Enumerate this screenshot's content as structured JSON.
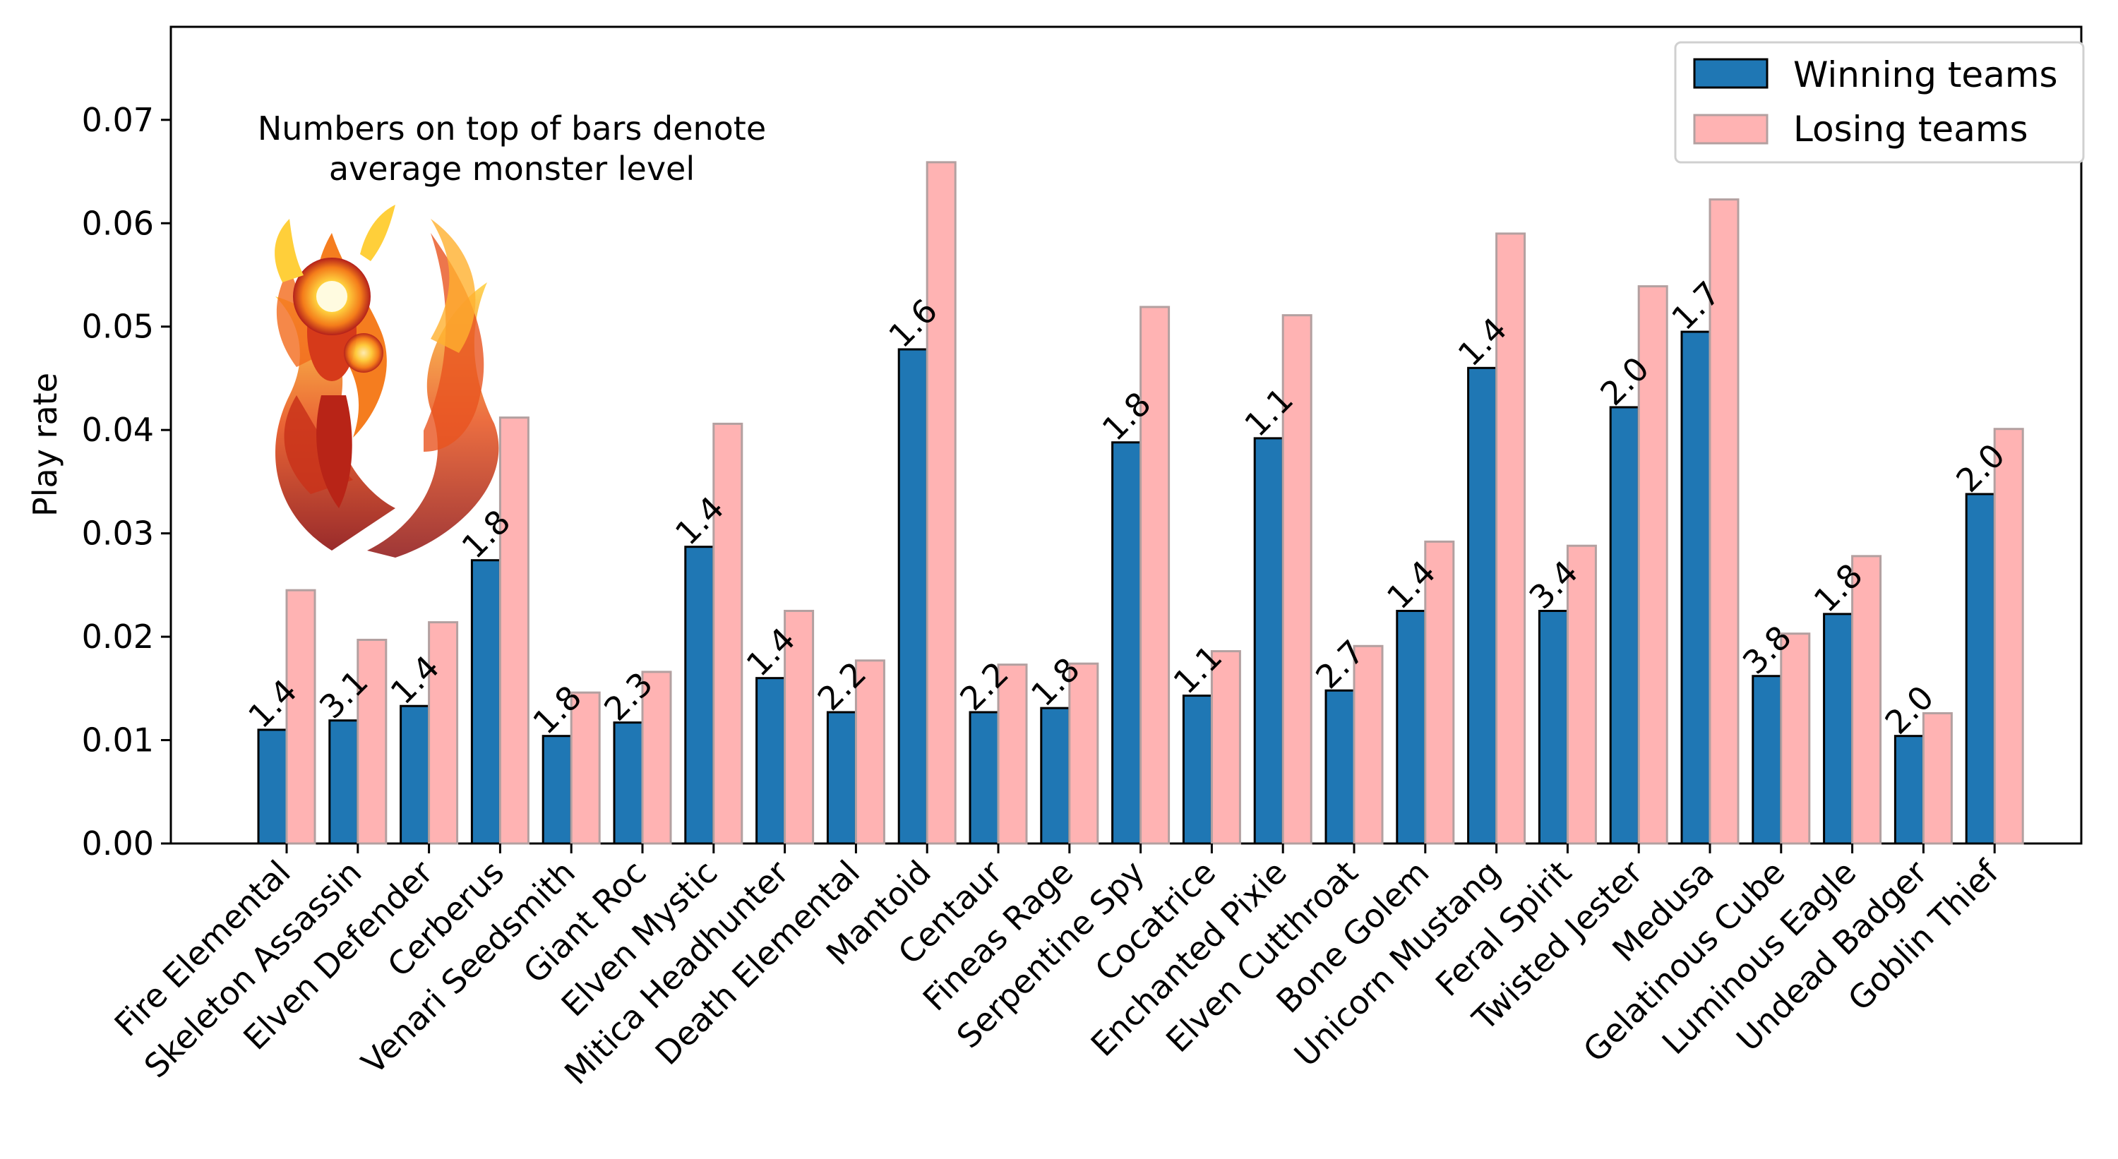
{
  "chart_data": {
    "type": "bar",
    "ylabel": "Play rate",
    "xlabel": "",
    "ylim": [
      0,
      0.079
    ],
    "yticks": [
      "0.00",
      "0.01",
      "0.02",
      "0.03",
      "0.04",
      "0.05",
      "0.06",
      "0.07"
    ],
    "ytick_values": [
      0,
      0.01,
      0.02,
      0.03,
      0.04,
      0.05,
      0.06,
      0.07
    ],
    "annotation": "Numbers on top of bars denote\naverage monster level",
    "annotation_lines": [
      "Numbers on top of bars denote",
      "average monster level"
    ],
    "legend_position": "top-right",
    "grid": false,
    "categories": [
      "Fire Elemental",
      "Skeleton Assassin",
      "Elven Defender",
      "Cerberus",
      "Venari Seedsmith",
      "Giant Roc",
      "Elven Mystic",
      "Mitica Headhunter",
      "Death Elemental",
      "Mantoid",
      "Centaur",
      "Fineas Rage",
      "Serpentine Spy",
      "Cocatrice",
      "Enchanted Pixie",
      "Elven Cutthroat",
      "Bone Golem",
      "Unicorn Mustang",
      "Feral Spirit",
      "Twisted Jester",
      "Medusa",
      "Gelatinous Cube",
      "Luminous Eagle",
      "Undead Badger",
      "Goblin Thief"
    ],
    "series": [
      {
        "name": "Winning teams",
        "color": "#1f77b4",
        "values": [
          0.011,
          0.0119,
          0.0133,
          0.0274,
          0.0104,
          0.0117,
          0.0287,
          0.016,
          0.0127,
          0.0478,
          0.0127,
          0.0131,
          0.0388,
          0.0143,
          0.0392,
          0.0148,
          0.0225,
          0.046,
          0.0225,
          0.0422,
          0.0495,
          0.0162,
          0.0222,
          0.0104,
          0.0338
        ]
      },
      {
        "name": "Losing teams",
        "color": "#ffb3b3",
        "values": [
          0.0245,
          0.0197,
          0.0214,
          0.0412,
          0.0146,
          0.0166,
          0.0406,
          0.0225,
          0.0177,
          0.0659,
          0.0173,
          0.0174,
          0.0519,
          0.0186,
          0.0511,
          0.0191,
          0.0292,
          0.059,
          0.0288,
          0.0539,
          0.0623,
          0.0203,
          0.0278,
          0.0126,
          0.0401
        ]
      }
    ],
    "bar_labels": [
      "1.4",
      "3.1",
      "1.4",
      "1.8",
      "1.8",
      "2.3",
      "1.4",
      "1.4",
      "2.2",
      "1.6",
      "2.2",
      "1.8",
      "1.8",
      "1.1",
      "1.1",
      "2.7",
      "1.4",
      "1.4",
      "3.4",
      "2.0",
      "1.7",
      "3.8",
      "1.8",
      "2.0",
      "2.0"
    ]
  },
  "image": {
    "icon": "fire-phoenix-image"
  }
}
